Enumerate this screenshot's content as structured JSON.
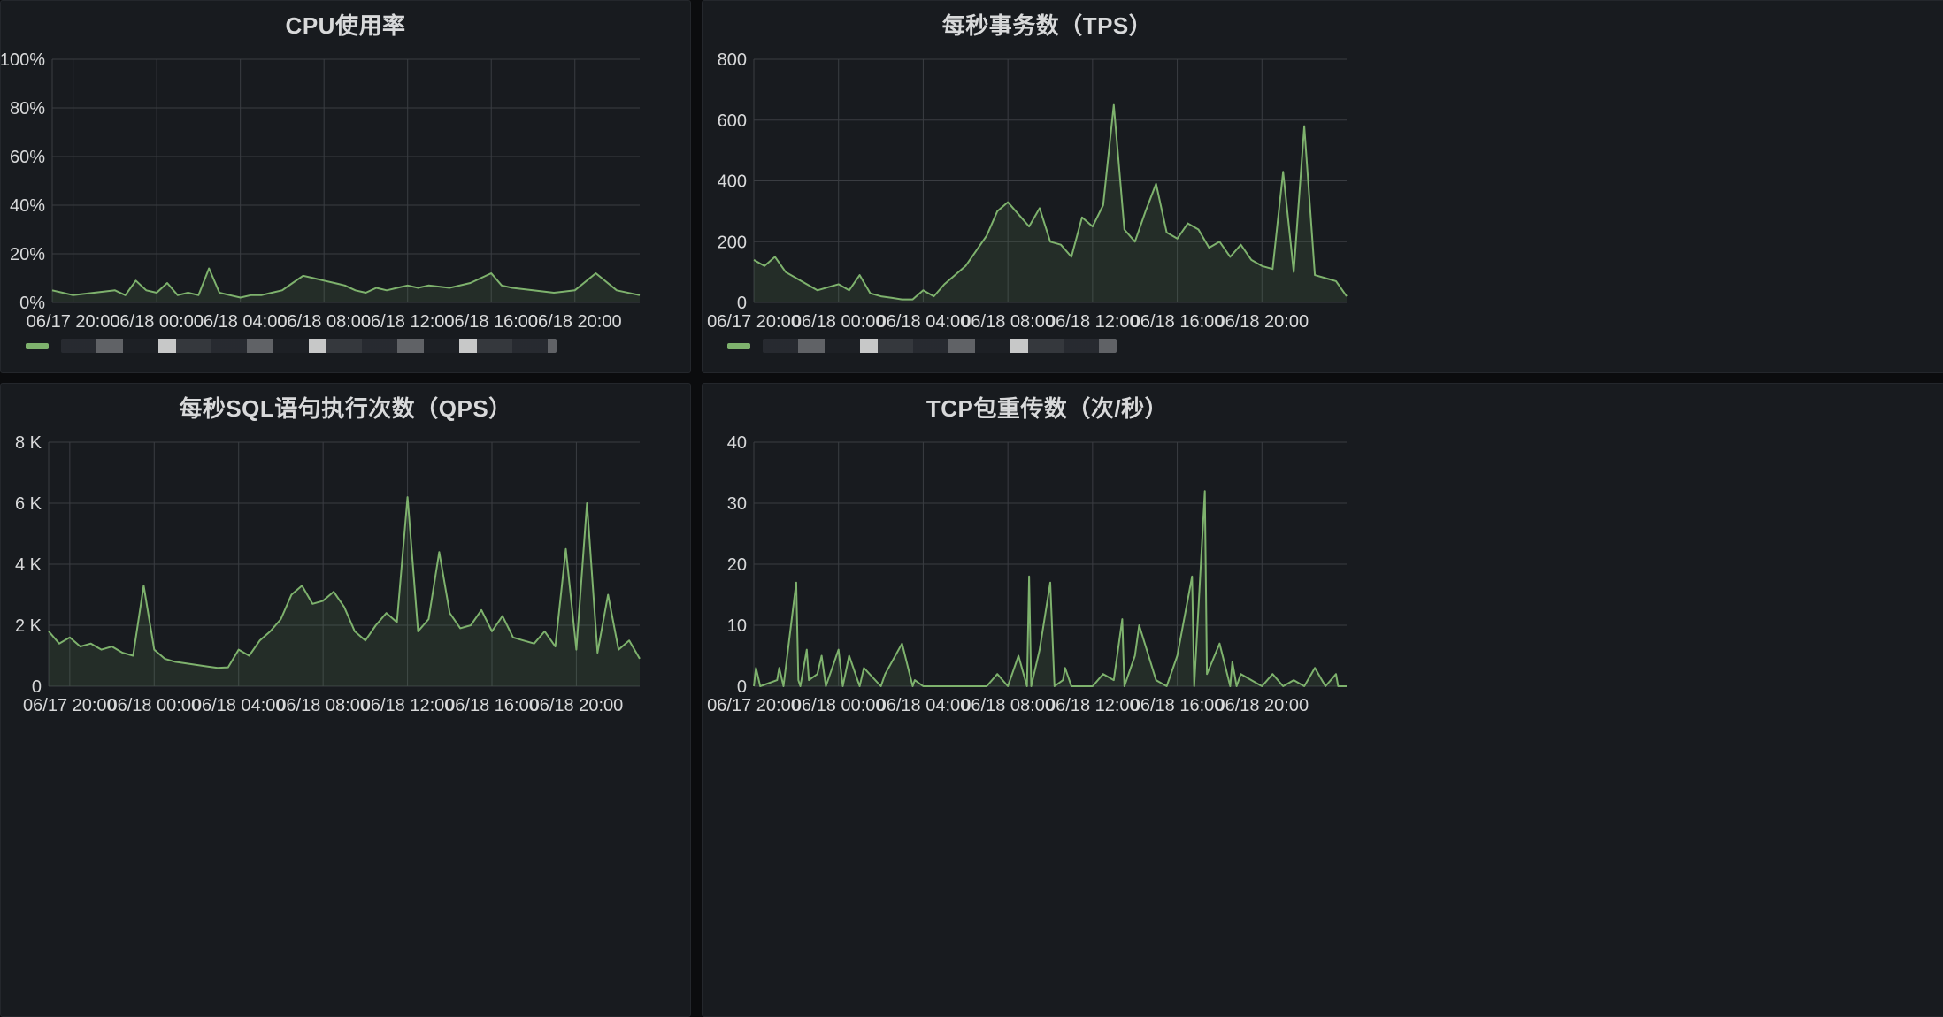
{
  "panels": [
    {
      "id": "cpu",
      "title": "CPU使用率",
      "legend": {
        "label": ""
      },
      "chart_data": {
        "type": "area",
        "title": "CPU使用率",
        "xlabel": "",
        "ylabel": "",
        "y_ticks": [
          "0%",
          "20%",
          "40%",
          "60%",
          "80%",
          "100%"
        ],
        "ylim": [
          0,
          100
        ],
        "x_ticks": [
          "06/17 20:00",
          "06/18 00:00",
          "06/18 04:00",
          "06/18 08:00",
          "06/18 12:00",
          "06/18 16:00",
          "06/18 20:00"
        ],
        "x_hours": [
          0,
          4,
          8,
          12,
          16,
          20,
          24
        ],
        "x_range": [
          -1.0,
          27.1
        ],
        "series": [
          {
            "color": "#7eb26d",
            "x": [
              -1.0,
              -0.5,
              0,
              1,
              2,
              2.5,
              3,
              3.5,
              4,
              4.5,
              5,
              5.5,
              6,
              6.5,
              7,
              7.5,
              8,
              8.5,
              9,
              9.5,
              10,
              10.5,
              11,
              11.5,
              12,
              12.5,
              13,
              13.5,
              14,
              14.5,
              15,
              15.5,
              16,
              16.5,
              17,
              18,
              19,
              20,
              20.5,
              21,
              22,
              23,
              24,
              25,
              26,
              27.1
            ],
            "values": [
              5,
              4,
              3,
              4,
              5,
              3,
              9,
              5,
              4,
              8,
              3,
              4,
              3,
              14,
              4,
              3,
              2,
              3,
              3,
              4,
              5,
              8,
              11,
              10,
              9,
              8,
              7,
              5,
              4,
              6,
              5,
              6,
              7,
              6,
              7,
              6,
              8,
              12,
              7,
              6,
              5,
              4,
              5,
              12,
              5,
              3
            ]
          }
        ]
      }
    },
    {
      "id": "tps",
      "title": "每秒事务数（TPS）",
      "legend": {
        "label": ""
      },
      "chart_data": {
        "type": "area",
        "title": "每秒事务数（TPS）",
        "xlabel": "",
        "ylabel": "",
        "y_ticks": [
          "0",
          "200",
          "400",
          "600",
          "800"
        ],
        "ylim": [
          0,
          800
        ],
        "x_ticks": [
          "06/17 20:00",
          "06/18 00:00",
          "06/18 04:00",
          "06/18 08:00",
          "06/18 12:00",
          "06/18 16:00",
          "06/18 20:00"
        ],
        "x_hours": [
          0,
          4,
          8,
          12,
          16,
          20,
          24
        ],
        "x_range": [
          0,
          28
        ],
        "series": [
          {
            "color": "#7eb26d",
            "x": [
              0,
              0.5,
              1,
              1.5,
              2,
              2.5,
              3,
              3.5,
              4,
              4.5,
              5,
              5.5,
              6,
              6.5,
              7,
              7.5,
              8,
              8.5,
              9,
              9.5,
              10,
              10.5,
              11,
              11.5,
              12,
              12.5,
              13,
              13.5,
              14,
              14.5,
              15,
              15.5,
              16,
              16.5,
              17,
              17.5,
              18,
              18.5,
              19,
              19.5,
              20,
              20.5,
              21,
              21.5,
              22,
              22.5,
              23,
              23.5,
              24,
              24.5,
              25,
              25.5,
              26,
              26.5,
              27,
              27.5,
              28
            ],
            "values": [
              140,
              120,
              150,
              100,
              80,
              60,
              40,
              50,
              60,
              40,
              90,
              30,
              20,
              15,
              10,
              10,
              40,
              20,
              60,
              90,
              120,
              170,
              220,
              300,
              330,
              290,
              250,
              310,
              200,
              190,
              150,
              280,
              250,
              320,
              650,
              240,
              200,
              300,
              390,
              230,
              210,
              260,
              240,
              180,
              200,
              150,
              190,
              140,
              120,
              110,
              430,
              100,
              580,
              90,
              80,
              70,
              20
            ]
          }
        ]
      }
    },
    {
      "id": "qps",
      "title": "每秒SQL语句执行次数（QPS）",
      "chart_data": {
        "type": "area",
        "title": "每秒SQL语句执行次数（QPS）",
        "xlabel": "",
        "ylabel": "",
        "y_ticks": [
          "0",
          "2 K",
          "4 K",
          "6 K",
          "8 K"
        ],
        "ylim": [
          0,
          8000
        ],
        "x_ticks": [
          "06/17 20:00",
          "06/18 00:00",
          "06/18 04:00",
          "06/18 08:00",
          "06/18 12:00",
          "06/18 16:00",
          "06/18 20:00"
        ],
        "x_hours": [
          0,
          4,
          8,
          12,
          16,
          20,
          24
        ],
        "x_range": [
          -1.0,
          27.0
        ],
        "series": [
          {
            "color": "#7eb26d",
            "x": [
              -1.0,
              -0.5,
              0,
              0.5,
              1,
              1.5,
              2,
              2.5,
              3,
              3.5,
              4,
              4.5,
              5,
              5.5,
              6,
              6.5,
              7,
              7.5,
              8,
              8.5,
              9,
              9.5,
              10,
              10.5,
              11,
              11.5,
              12,
              12.5,
              13,
              13.5,
              14,
              14.5,
              15,
              15.5,
              16,
              16.5,
              17,
              17.5,
              18,
              18.5,
              19,
              19.5,
              20,
              20.5,
              21,
              21.5,
              22,
              22.5,
              23,
              23.5,
              24,
              24.5,
              25,
              25.5,
              26,
              26.5,
              27.0
            ],
            "values": [
              1800,
              1400,
              1600,
              1300,
              1400,
              1200,
              1300,
              1100,
              1000,
              3300,
              1200,
              900,
              800,
              750,
              700,
              650,
              600,
              620,
              1200,
              1000,
              1500,
              1800,
              2200,
              3000,
              3300,
              2700,
              2800,
              3100,
              2600,
              1800,
              1500,
              2000,
              2400,
              2100,
              6200,
              1800,
              2200,
              4400,
              2400,
              1900,
              2000,
              2500,
              1800,
              2300,
              1600,
              1500,
              1400,
              1800,
              1300,
              4500,
              1200,
              6000,
              1100,
              3000,
              1200,
              1500,
              900
            ]
          }
        ]
      }
    },
    {
      "id": "tcp",
      "title": "TCP包重传数（次/秒）",
      "chart_data": {
        "type": "area",
        "title": "TCP包重传数（次/秒）",
        "xlabel": "",
        "ylabel": "",
        "y_ticks": [
          "0",
          "10",
          "20",
          "30",
          "40"
        ],
        "ylim": [
          0,
          40
        ],
        "x_ticks": [
          "06/17 20:00",
          "06/18 00:00",
          "06/18 04:00",
          "06/18 08:00",
          "06/18 12:00",
          "06/18 16:00",
          "06/18 20:00"
        ],
        "x_hours": [
          0,
          4,
          8,
          12,
          16,
          20,
          24
        ],
        "x_range": [
          0,
          28
        ],
        "series": [
          {
            "color": "#7eb26d",
            "x": [
              0,
              0.1,
              0.3,
              1.1,
              1.2,
              1.4,
              2.0,
              2.1,
              2.2,
              2.4,
              2.5,
              2.6,
              3.0,
              3.2,
              3.4,
              4.0,
              4.2,
              4.5,
              5.0,
              5.2,
              6.0,
              6.2,
              7.0,
              7.5,
              7.6,
              8.0,
              9.0,
              10.0,
              11.0,
              11.5,
              12.0,
              12.5,
              12.9,
              13.0,
              13.1,
              13.5,
              14.0,
              14.2,
              14.6,
              14.7,
              15.0,
              16.0,
              16.5,
              17.0,
              17.4,
              17.5,
              18.0,
              18.2,
              19.0,
              19.5,
              20.0,
              20.7,
              20.8,
              21.3,
              21.4,
              22.0,
              22.5,
              22.6,
              22.8,
              23.0,
              23.5,
              24.0,
              24.5,
              25.0,
              25.5,
              26.0,
              26.5,
              27.0,
              27.5,
              27.6,
              28.0
            ],
            "values": [
              0,
              3,
              0,
              1,
              3,
              0,
              17,
              1,
              0,
              4,
              6,
              1,
              2,
              5,
              0,
              6,
              0,
              5,
              0,
              3,
              0,
              2,
              7,
              0,
              1,
              0,
              0,
              0,
              0,
              2,
              0,
              5,
              0,
              18,
              0,
              6,
              17,
              0,
              1,
              3,
              0,
              0,
              2,
              1,
              11,
              0,
              5,
              10,
              1,
              0,
              5,
              18,
              0,
              32,
              2,
              7,
              0,
              4,
              0,
              2,
              1,
              0,
              2,
              0,
              1,
              0,
              3,
              0,
              2,
              0,
              0
            ]
          }
        ]
      }
    }
  ]
}
